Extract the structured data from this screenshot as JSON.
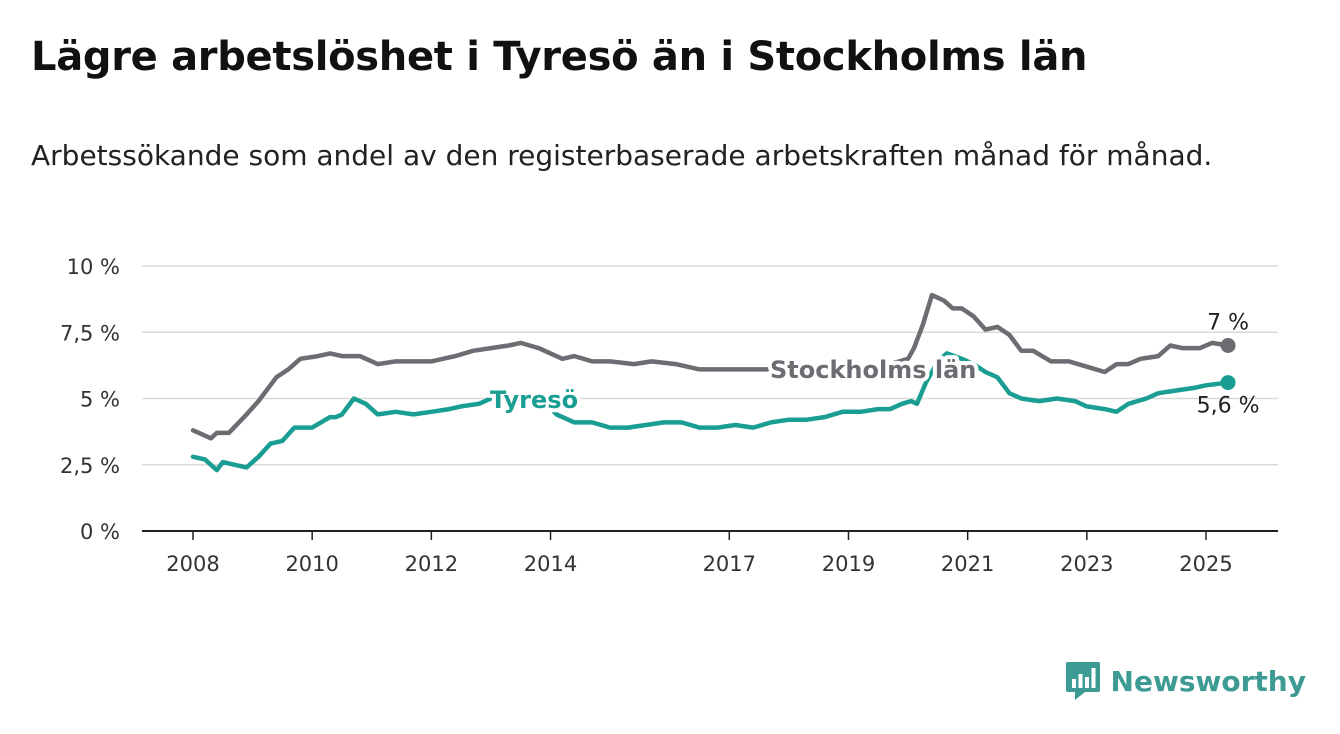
{
  "title": "Lägre arbetslöshet i Tyresö än i Stockholms län",
  "subtitle": "Arbetssökande som andel av den registerbaserade arbetskraften månad för månad.",
  "brand": {
    "name": "Newsworthy",
    "color": "#3d9b94"
  },
  "chart_data": {
    "type": "line",
    "ylim": [
      0,
      10
    ],
    "yticks": [
      0,
      2.5,
      5,
      7.5,
      10
    ],
    "ytick_labels": [
      "0 %",
      "2,5 %",
      "5 %",
      "7,5 %",
      "10 %"
    ],
    "xlim": [
      2008,
      2025.6
    ],
    "xticks": [
      2008,
      2010,
      2012,
      2014,
      2017,
      2019,
      2021,
      2023,
      2025
    ],
    "xtick_labels": [
      "2008",
      "2010",
      "2012",
      "2014",
      "2017",
      "2019",
      "2021",
      "2023",
      "2025"
    ],
    "grid": true,
    "series": [
      {
        "name": "Stockholms län",
        "color": "#6e6c72",
        "end_label": "7 %",
        "x": [
          2008.0,
          2008.3,
          2008.4,
          2008.6,
          2008.9,
          2009.1,
          2009.4,
          2009.6,
          2009.8,
          2010.1,
          2010.3,
          2010.5,
          2010.8,
          2011.1,
          2011.4,
          2011.7,
          2012.0,
          2012.4,
          2012.7,
          2013.0,
          2013.3,
          2013.5,
          2013.8,
          2014.2,
          2014.4,
          2014.7,
          2015.0,
          2015.4,
          2015.7,
          2016.1,
          2016.5,
          2016.9,
          2017.3,
          2017.7,
          2018.1,
          2018.5,
          2018.9,
          2019.3,
          2019.7,
          2020.0,
          2020.1,
          2020.25,
          2020.4,
          2020.6,
          2020.75,
          2020.9,
          2021.1,
          2021.3,
          2021.5,
          2021.7,
          2021.9,
          2022.1,
          2022.4,
          2022.7,
          2023.0,
          2023.3,
          2023.5,
          2023.7,
          2023.9,
          2024.2,
          2024.4,
          2024.6,
          2024.9,
          2025.1,
          2025.37
        ],
        "y": [
          3.8,
          3.5,
          3.7,
          3.7,
          4.4,
          4.9,
          5.8,
          6.1,
          6.5,
          6.6,
          6.7,
          6.6,
          6.6,
          6.3,
          6.4,
          6.4,
          6.4,
          6.6,
          6.8,
          6.9,
          7.0,
          7.1,
          6.9,
          6.5,
          6.6,
          6.4,
          6.4,
          6.3,
          6.4,
          6.3,
          6.1,
          6.1,
          6.1,
          6.1,
          6.0,
          6.1,
          6.2,
          6.2,
          6.3,
          6.5,
          6.9,
          7.8,
          8.9,
          8.7,
          8.4,
          8.4,
          8.1,
          7.6,
          7.7,
          7.4,
          6.8,
          6.8,
          6.4,
          6.4,
          6.2,
          6.0,
          6.3,
          6.3,
          6.5,
          6.6,
          7.0,
          6.9,
          6.9,
          7.1,
          7.0
        ]
      },
      {
        "name": "Tyresö",
        "color": "#1a9e93",
        "end_label": "5,6 %",
        "x": [
          2008.0,
          2008.2,
          2008.4,
          2008.5,
          2008.7,
          2008.9,
          2009.1,
          2009.3,
          2009.5,
          2009.7,
          2010.0,
          2010.3,
          2010.4,
          2010.5,
          2010.7,
          2010.9,
          2011.1,
          2011.4,
          2011.7,
          2012.0,
          2012.3,
          2012.5,
          2012.8,
          2013.0,
          2013.3,
          2013.6,
          2013.9,
          2014.1,
          2014.4,
          2014.7,
          2015.0,
          2015.3,
          2015.6,
          2015.9,
          2016.2,
          2016.5,
          2016.8,
          2017.1,
          2017.4,
          2017.7,
          2018.0,
          2018.3,
          2018.6,
          2018.9,
          2019.2,
          2019.5,
          2019.7,
          2019.9,
          2020.05,
          2020.15,
          2020.3,
          2020.5,
          2020.65,
          2020.9,
          2021.1,
          2021.3,
          2021.5,
          2021.7,
          2021.9,
          2022.2,
          2022.5,
          2022.8,
          2023.0,
          2023.3,
          2023.5,
          2023.7,
          2024.0,
          2024.2,
          2024.5,
          2024.8,
          2025.0,
          2025.37
        ],
        "y": [
          2.8,
          2.7,
          2.3,
          2.6,
          2.5,
          2.4,
          2.8,
          3.3,
          3.4,
          3.9,
          3.9,
          4.3,
          4.3,
          4.4,
          5.0,
          4.8,
          4.4,
          4.5,
          4.4,
          4.5,
          4.6,
          4.7,
          4.8,
          5.0,
          5.0,
          5.0,
          4.9,
          4.4,
          4.1,
          4.1,
          3.9,
          3.9,
          4.0,
          4.1,
          4.1,
          3.9,
          3.9,
          4.0,
          3.9,
          4.1,
          4.2,
          4.2,
          4.3,
          4.5,
          4.5,
          4.6,
          4.6,
          4.8,
          4.9,
          4.8,
          5.6,
          6.4,
          6.7,
          6.5,
          6.3,
          6.0,
          5.8,
          5.2,
          5.0,
          4.9,
          5.0,
          4.9,
          4.7,
          4.6,
          4.5,
          4.8,
          5.0,
          5.2,
          5.3,
          5.4,
          5.5,
          5.6
        ]
      }
    ]
  }
}
